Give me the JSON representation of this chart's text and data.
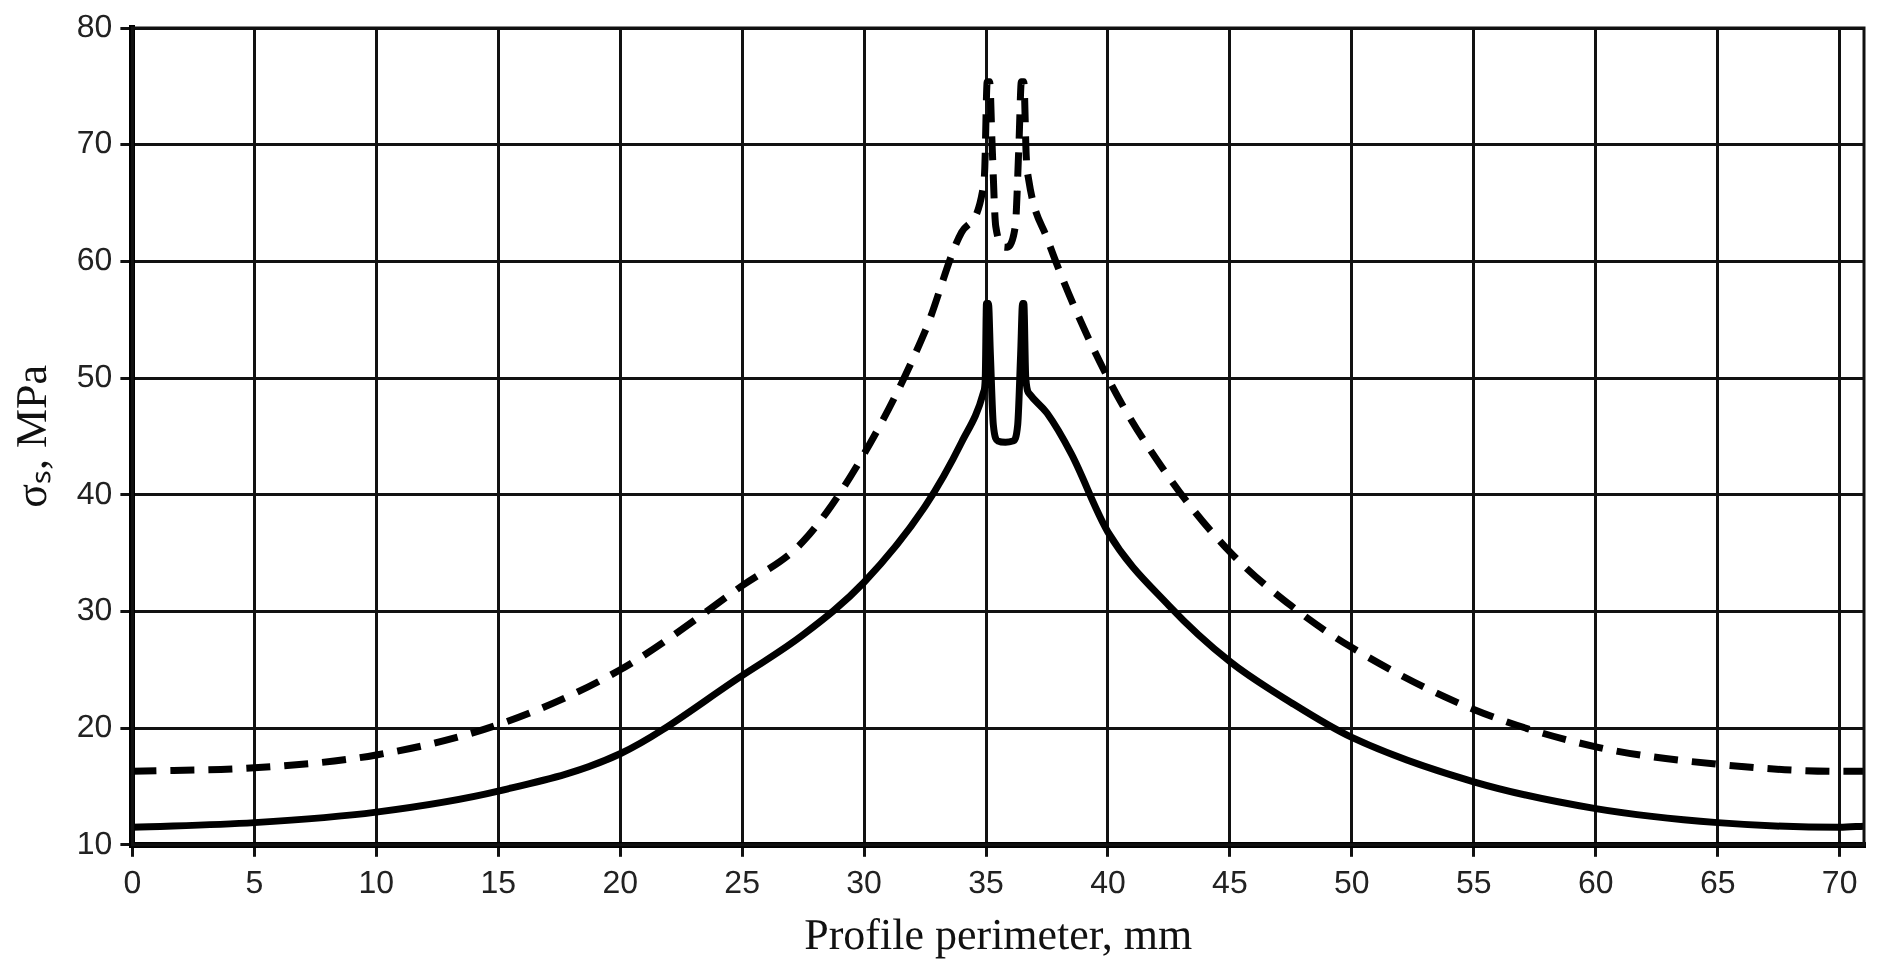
{
  "chart_data": {
    "type": "line",
    "xlabel": "Profile perimeter, mm",
    "ylabel": "σₛ, MPa",
    "xlim": [
      0,
      71
    ],
    "xticks": [
      0,
      5,
      10,
      15,
      20,
      25,
      30,
      35,
      40,
      45,
      50,
      55,
      60,
      65,
      70
    ],
    "ylim": [
      10,
      80
    ],
    "yticks": [
      10,
      20,
      30,
      40,
      50,
      60,
      70,
      80
    ],
    "grid": true,
    "legend": false,
    "marker": "none",
    "series": [
      {
        "color": "#000000",
        "line_style": "dashed",
        "x": [
          0,
          5,
          10,
          15,
          20,
          25,
          27.5,
          30,
          32.5,
          34,
          34.9,
          34.95,
          35.05,
          35.15,
          35.25,
          35.4,
          35.8,
          36.2,
          36.35,
          36.45,
          36.55,
          36.65,
          36.75,
          37.5,
          40,
          42.5,
          45,
          47.5,
          50,
          55,
          60,
          65,
          70,
          71
        ],
        "values": [
          16.3,
          16.6,
          17.7,
          20.3,
          25,
          32.2,
          36,
          43.5,
          54,
          62.5,
          66.5,
          68,
          75.4,
          75.4,
          70,
          63,
          61.2,
          63,
          70,
          75.4,
          75.4,
          69,
          67,
          62,
          50,
          41.5,
          35.1,
          30.5,
          26.9,
          21.6,
          18.4,
          16.9,
          16.3,
          16.3
        ]
      },
      {
        "color": "#000000",
        "line_style": "solid",
        "x": [
          0,
          5,
          10,
          15,
          20,
          25,
          27.5,
          30,
          32.5,
          34,
          34.9,
          34.97,
          35.02,
          35.1,
          35.18,
          35.3,
          35.5,
          35.8,
          36.1,
          36.3,
          36.42,
          36.5,
          36.55,
          36.63,
          36.8,
          37.5,
          38.5,
          40,
          42.5,
          45,
          47.5,
          50,
          55,
          60,
          65,
          70,
          71
        ],
        "values": [
          11.5,
          11.9,
          12.8,
          14.6,
          17.8,
          24.5,
          28,
          32.5,
          39,
          44.5,
          48.8,
          50,
          56.4,
          56.4,
          52,
          46,
          44.6,
          44.5,
          44.6,
          46,
          52,
          56.4,
          56.4,
          50,
          48.6,
          47,
          43.5,
          36.8,
          30.5,
          25.7,
          22.2,
          19.2,
          15.4,
          13.1,
          11.9,
          11.5,
          11.6
        ]
      }
    ]
  }
}
